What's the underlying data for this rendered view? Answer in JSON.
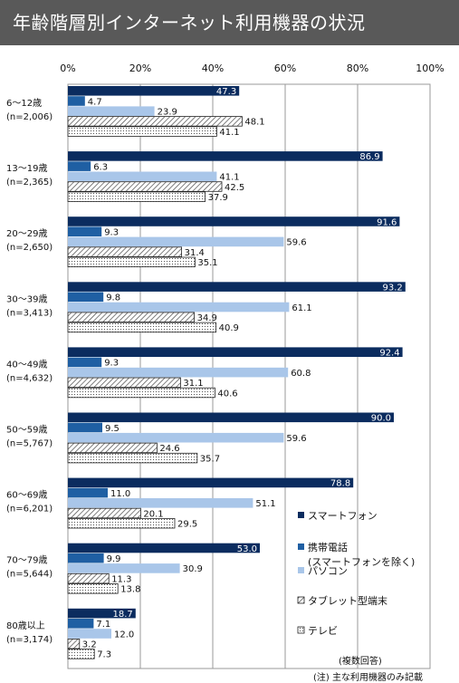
{
  "title": "年齢階層別インターネット利用機器の状況",
  "notes": {
    "multi": "(複数回答)",
    "main": "(注) 主な利用機器のみ記載"
  },
  "chart_data": {
    "type": "bar",
    "orientation": "horizontal",
    "xlim": [
      0,
      100
    ],
    "x_ticks": [
      "0%",
      "20%",
      "40%",
      "60%",
      "80%",
      "100%"
    ],
    "grid": true,
    "legend_position": "right",
    "categories": [
      {
        "age": "6～12歳",
        "n": "(n=2,006)"
      },
      {
        "age": "13～19歳",
        "n": "(n=2,365)"
      },
      {
        "age": "20～29歳",
        "n": "(n=2,650)"
      },
      {
        "age": "30～39歳",
        "n": "(n=3,413)"
      },
      {
        "age": "40～49歳",
        "n": "(n=4,632)"
      },
      {
        "age": "50～59歳",
        "n": "(n=5,767)"
      },
      {
        "age": "60～69歳",
        "n": "(n=6,201)"
      },
      {
        "age": "70～79歳",
        "n": "(n=5,644)"
      },
      {
        "age": "80歳以上",
        "n": "(n=3,174)"
      }
    ],
    "series": [
      {
        "name": "スマートフォン",
        "style": "solid",
        "color": "#0b2c5f",
        "values": [
          47.3,
          86.9,
          91.6,
          93.2,
          92.4,
          90.0,
          78.8,
          53.0,
          18.7
        ]
      },
      {
        "name": "携帯電話",
        "name_sub": "(スマートフォンを除く)",
        "style": "solid",
        "color": "#1f5fa3",
        "values": [
          4.7,
          6.3,
          9.3,
          9.8,
          9.3,
          9.5,
          11.0,
          9.9,
          7.1
        ]
      },
      {
        "name": "パソコン",
        "style": "solid",
        "color": "#a9c6e9",
        "values": [
          23.9,
          41.1,
          59.6,
          61.1,
          60.8,
          59.6,
          51.1,
          30.9,
          12.0
        ]
      },
      {
        "name": "タブレット型端末",
        "style": "hatch",
        "color": "#4a4a4a",
        "values": [
          48.1,
          42.5,
          31.4,
          34.9,
          31.1,
          24.6,
          20.1,
          11.3,
          3.2
        ]
      },
      {
        "name": "テレビ",
        "style": "dots",
        "color": "#333333",
        "values": [
          41.1,
          37.9,
          35.1,
          40.9,
          40.6,
          35.7,
          29.5,
          13.8,
          7.3
        ]
      }
    ]
  }
}
